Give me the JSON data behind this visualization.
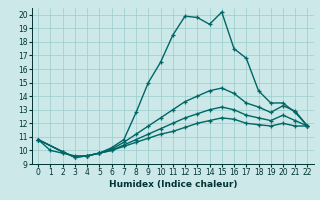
{
  "xlabel": "Humidex (Indice chaleur)",
  "bg_color": "#cce8e8",
  "grid_color": "#99cccc",
  "line_color": "#006666",
  "xlim": [
    -0.5,
    22.5
  ],
  "ylim": [
    9,
    20.5
  ],
  "xticks": [
    0,
    1,
    2,
    3,
    4,
    5,
    6,
    7,
    8,
    9,
    10,
    11,
    12,
    13,
    14,
    15,
    16,
    17,
    18,
    19,
    20,
    21,
    22
  ],
  "yticks": [
    9,
    10,
    11,
    12,
    13,
    14,
    15,
    16,
    17,
    18,
    19,
    20
  ],
  "series": [
    {
      "x": [
        0,
        1,
        2,
        3,
        4,
        5,
        6,
        7,
        8,
        9,
        10,
        11,
        12,
        13,
        14,
        15,
        16,
        17,
        18,
        19,
        20,
        21,
        22
      ],
      "y": [
        10.8,
        10.0,
        9.8,
        9.6,
        9.6,
        9.8,
        10.2,
        10.8,
        12.8,
        15.0,
        16.5,
        18.5,
        19.9,
        19.8,
        19.3,
        20.2,
        17.5,
        16.8,
        14.4,
        13.5,
        13.5,
        12.8,
        11.8
      ]
    },
    {
      "x": [
        0,
        2,
        3,
        4,
        5,
        6,
        7,
        8,
        9,
        10,
        11,
        12,
        13,
        14,
        15,
        16,
        17,
        18,
        19,
        20,
        21,
        22
      ],
      "y": [
        10.8,
        9.9,
        9.5,
        9.6,
        9.8,
        10.0,
        10.3,
        10.6,
        10.9,
        11.2,
        11.4,
        11.7,
        12.0,
        12.2,
        12.4,
        12.3,
        12.0,
        11.9,
        11.8,
        12.0,
        11.8,
        11.8
      ]
    },
    {
      "x": [
        0,
        2,
        3,
        4,
        5,
        6,
        7,
        8,
        9,
        10,
        11,
        12,
        13,
        14,
        15,
        16,
        17,
        18,
        19,
        20,
        21,
        22
      ],
      "y": [
        10.8,
        9.9,
        9.5,
        9.6,
        9.8,
        10.0,
        10.4,
        10.8,
        11.2,
        11.6,
        12.0,
        12.4,
        12.7,
        13.0,
        13.2,
        13.0,
        12.6,
        12.4,
        12.2,
        12.6,
        12.2,
        11.8
      ]
    },
    {
      "x": [
        0,
        2,
        3,
        4,
        5,
        6,
        7,
        8,
        9,
        10,
        11,
        12,
        13,
        14,
        15,
        16,
        17,
        18,
        19,
        20,
        21,
        22
      ],
      "y": [
        10.8,
        9.9,
        9.5,
        9.6,
        9.8,
        10.1,
        10.6,
        11.2,
        11.8,
        12.4,
        13.0,
        13.6,
        14.0,
        14.4,
        14.6,
        14.2,
        13.5,
        13.2,
        12.8,
        13.3,
        12.9,
        11.8
      ]
    }
  ]
}
